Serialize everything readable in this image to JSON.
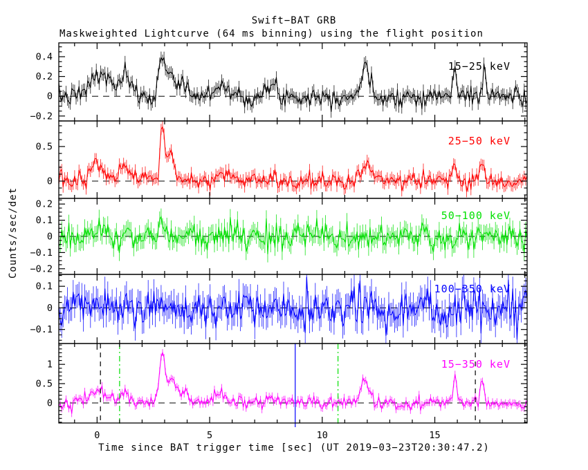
{
  "title": "Swift−BAT GRB",
  "subtitle": "Maskweighted Lightcurve (64 ms binning) using the flight position",
  "axis": {
    "x_label": "Time since BAT trigger time [sec] (UT 2019−03−23T20:30:47.2)",
    "y_label": "Counts/sec/det"
  },
  "chart_data": {
    "type": "line",
    "description": "Five stacked Swift-BAT mask-weighted GRB lightcurve panels (64 ms bins) vs time since trigger; noisy traces with error bars, dashed zero line in each panel, burst markers in bottom panel",
    "x_range": [
      -1.7,
      19.1
    ],
    "x_major_ticks": [
      0,
      5,
      10,
      15
    ],
    "x_minor_step": 1,
    "bin_sec": 0.064,
    "zero_line": {
      "style": "dashed",
      "color": "#000000"
    },
    "panels": [
      {
        "label": "15−25 keV",
        "color": "#000000",
        "seed": 7,
        "ylim": [
          -0.25,
          0.54
        ],
        "yticks": [
          -0.2,
          0,
          0.2,
          0.4
        ],
        "y_minor_step": 0.05,
        "noise_sigma": 0.05,
        "err": 0.06,
        "peaks": [
          {
            "t": -0.1,
            "a": 0.2,
            "w": 0.25
          },
          {
            "t": 0.45,
            "a": 0.18,
            "w": 0.2
          },
          {
            "t": 1.2,
            "a": 0.2,
            "w": 0.25
          },
          {
            "t": 2.9,
            "a": 0.42,
            "w": 0.12
          },
          {
            "t": 3.25,
            "a": 0.26,
            "w": 0.15
          },
          {
            "t": 3.8,
            "a": 0.14,
            "w": 0.2
          },
          {
            "t": 5.5,
            "a": 0.12,
            "w": 0.3
          },
          {
            "t": 7.8,
            "a": 0.1,
            "w": 0.2
          },
          {
            "t": 11.9,
            "a": 0.28,
            "w": 0.18
          },
          {
            "t": 15.9,
            "a": 0.3,
            "w": 0.08
          },
          {
            "t": 17.2,
            "a": 0.3,
            "w": 0.08
          }
        ]
      },
      {
        "label": "25−50 keV",
        "color": "#ff0000",
        "seed": 13,
        "ylim": [
          -0.25,
          0.87
        ],
        "yticks": [
          0,
          0.5
        ],
        "y_minor_step": 0.1,
        "noise_sigma": 0.065,
        "err": 0.08,
        "peaks": [
          {
            "t": 0.0,
            "a": 0.24,
            "w": 0.3
          },
          {
            "t": 1.2,
            "a": 0.18,
            "w": 0.25
          },
          {
            "t": 2.9,
            "a": 0.8,
            "w": 0.1
          },
          {
            "t": 3.25,
            "a": 0.42,
            "w": 0.15
          },
          {
            "t": 5.5,
            "a": 0.1,
            "w": 0.3
          },
          {
            "t": 11.9,
            "a": 0.3,
            "w": 0.18
          },
          {
            "t": 15.9,
            "a": 0.32,
            "w": 0.08
          },
          {
            "t": 17.1,
            "a": 0.22,
            "w": 0.1
          }
        ]
      },
      {
        "label": "50−100 keV",
        "color": "#00e000",
        "seed": 21,
        "ylim": [
          -0.235,
          0.235
        ],
        "yticks": [
          -0.2,
          -0.1,
          0,
          0.1,
          0.2
        ],
        "y_minor_step": 0.025,
        "noise_sigma": 0.045,
        "err": 0.05,
        "peaks": [
          {
            "t": 2.9,
            "a": 0.07,
            "w": 0.15
          }
        ]
      },
      {
        "label": "100−350 keV",
        "color": "#0000ff",
        "seed": 5,
        "ylim": [
          -0.165,
          0.155
        ],
        "yticks": [
          -0.1,
          0,
          0.1
        ],
        "y_minor_step": 0.025,
        "noise_sigma": 0.045,
        "err": 0.055,
        "peaks": []
      },
      {
        "label": "15−350 keV",
        "color": "#ff00ff",
        "seed": 42,
        "ylim": [
          -0.52,
          1.54
        ],
        "yticks": [
          0,
          0.5,
          1
        ],
        "y_minor_step": 0.1,
        "noise_sigma": 0.085,
        "err": 0.09,
        "peaks": [
          {
            "t": 0.0,
            "a": 0.33,
            "w": 0.35
          },
          {
            "t": 1.2,
            "a": 0.28,
            "w": 0.25
          },
          {
            "t": 2.9,
            "a": 1.35,
            "w": 0.11
          },
          {
            "t": 3.3,
            "a": 0.7,
            "w": 0.18
          },
          {
            "t": 3.9,
            "a": 0.28,
            "w": 0.2
          },
          {
            "t": 5.5,
            "a": 0.24,
            "w": 0.3
          },
          {
            "t": 7.8,
            "a": 0.15,
            "w": 0.2
          },
          {
            "t": 11.9,
            "a": 0.6,
            "w": 0.18
          },
          {
            "t": 15.9,
            "a": 0.68,
            "w": 0.09
          },
          {
            "t": 17.1,
            "a": 0.52,
            "w": 0.1
          }
        ]
      }
    ],
    "event_markers": [
      {
        "t": 0.15,
        "color": "#000000",
        "style": "dashed",
        "below_axis": 0
      },
      {
        "t": 1.0,
        "color": "#00e000",
        "style": "dashdot",
        "below_axis": 5
      },
      {
        "t": 8.8,
        "color": "#0000ff",
        "style": "solid",
        "below_axis": 6
      },
      {
        "t": 10.7,
        "color": "#00e000",
        "style": "dashdot",
        "below_axis": 5
      },
      {
        "t": 16.8,
        "color": "#000000",
        "style": "dashed",
        "below_axis": 0
      }
    ]
  }
}
